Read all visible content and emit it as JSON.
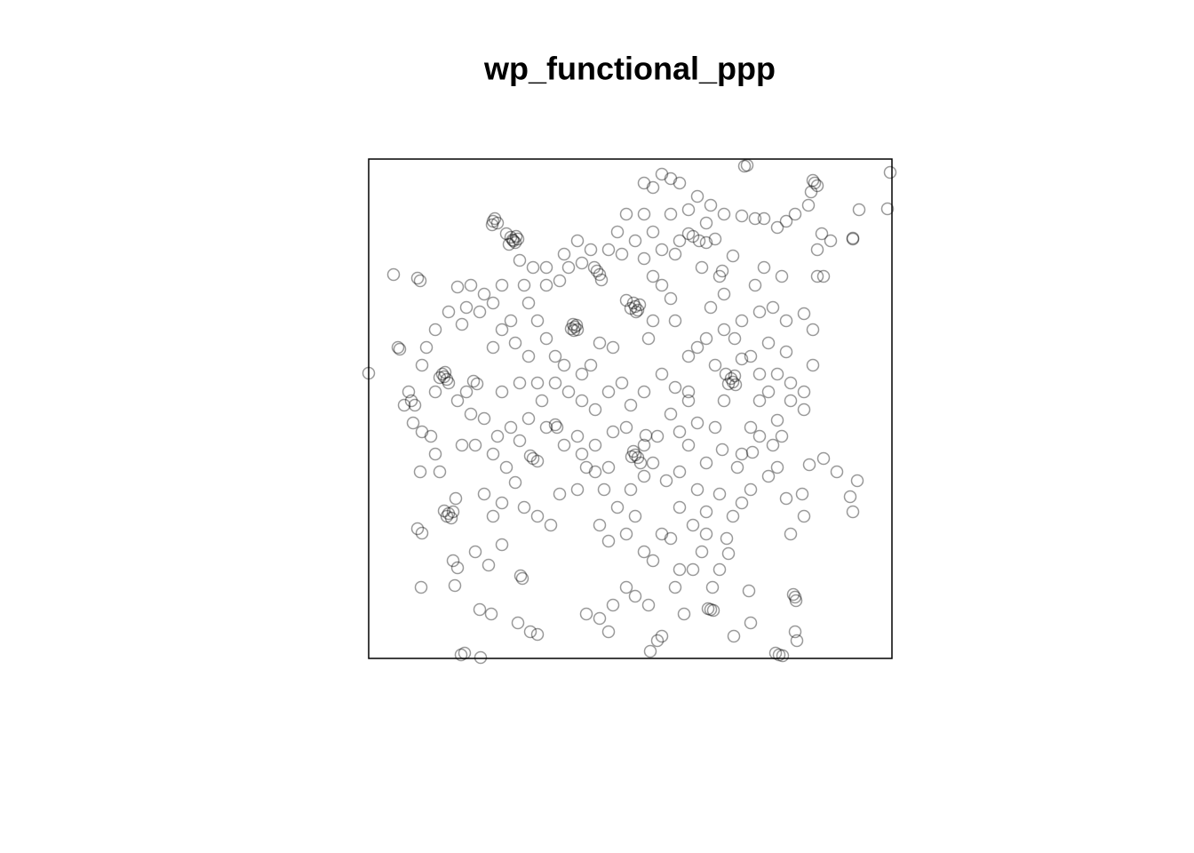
{
  "chart_data": {
    "type": "scatter",
    "title": "wp_functional_ppp",
    "color": "#000000",
    "alpha": 0.4,
    "xlim": [
      0,
      589
    ],
    "ylim": [
      0,
      562
    ],
    "x": [
      162,
      160,
      165,
      158,
      166,
      163,
      155,
      168,
      142,
      140,
      145,
      139,
      232,
      230,
      235,
      228,
      234,
      231,
      300,
      298,
      303,
      295,
      305,
      301,
      290,
      257,
      254,
      260,
      262,
      85,
      83,
      88,
      86,
      80,
      90,
      410,
      408,
      413,
      405,
      412,
      402,
      300,
      298,
      303,
      296,
      310,
      312,
      306,
      502,
      500,
      505,
      365,
      360,
      372,
      380,
      390,
      90,
      88,
      95,
      85,
      93,
      385,
      382,
      388,
      462,
      458,
      466,
      480,
      481,
      478,
      185,
      182,
      190,
      210,
      212,
      587,
      423,
      426,
      171,
      173,
      55,
      58,
      122,
      118,
      0,
      28,
      35,
      33,
      48,
      52,
      60,
      70,
      75,
      80,
      98,
      58,
      55,
      60,
      100,
      97,
      59,
      125,
      138,
      168,
      182,
      190,
      104,
      126,
      108,
      95,
      120,
      135,
      150,
      140,
      130,
      150,
      165,
      175,
      190,
      205,
      215,
      235,
      260,
      270,
      290,
      300,
      310,
      320,
      330,
      340,
      350,
      345,
      315,
      300,
      290,
      275,
      260,
      245,
      270,
      325,
      330,
      317,
      355,
      365,
      375,
      387,
      403,
      410,
      420,
      430,
      450,
      460,
      475,
      490,
      470,
      488,
      496,
      512,
      527,
      542,
      550,
      545,
      428,
      430,
      411,
      480,
      482,
      395,
      405,
      380,
      370,
      350,
      335,
      320,
      325,
      340,
      360,
      370,
      390,
      398,
      380,
      420,
      430,
      440,
      450,
      460,
      475,
      490,
      465,
      455,
      440,
      400,
      390,
      370,
      360,
      380,
      400,
      420,
      440,
      455,
      470,
      490,
      500,
      505,
      512,
      465,
      435,
      400,
      398,
      410,
      445,
      460,
      480,
      495,
      505,
      520,
      545,
      552,
      584,
      545,
      498,
      510,
      470,
      445,
      435,
      420,
      400,
      385,
      370,
      350,
      340,
      330,
      310,
      320,
      290,
      280,
      270,
      285,
      300,
      310,
      320,
      330,
      340,
      345,
      320,
      315,
      275,
      260,
      250,
      240,
      220,
      210,
      200,
      190,
      180,
      175,
      200,
      215,
      225,
      240,
      250,
      235,
      220,
      200,
      185,
      170,
      150,
      140,
      130,
      115,
      100,
      90,
      75,
      65,
      60,
      105,
      110,
      125,
      140,
      150,
      160,
      165,
      180,
      190,
      210,
      225,
      240,
      255,
      270,
      285,
      295,
      310,
      330,
      345,
      360,
      290,
      275,
      255,
      235,
      220,
      200,
      180,
      160,
      145,
      130,
      115,
      100,
      120,
      140,
      155,
      170,
      105,
      75,
      45,
      40,
      50,
      110,
      150,
      170,
      195,
      245,
      255,
      265,
      280,
      295,
      310,
      270,
      240,
      350,
      360,
      350,
      365,
      380,
      395,
      415,
      432,
      460,
      475,
      490,
      500,
      470,
      450,
      430,
      412,
      420,
      440,
      385,
      395,
      375,
      345,
      330,
      350,
      310,
      320,
      340,
      360,
      380
    ],
    "values": [
      471,
      474,
      468,
      466,
      475,
      470,
      478,
      472,
      495,
      492,
      490,
      488,
      373,
      376,
      370,
      371,
      375,
      369,
      396,
      400,
      392,
      394,
      398,
      390,
      403,
      436,
      440,
      432,
      426,
      317,
      320,
      314,
      322,
      316,
      310,
      311,
      315,
      308,
      309,
      318,
      320,
      229,
      233,
      226,
      227,
      240,
      251,
      220,
      535,
      538,
      532,
      475,
      478,
      470,
      468,
      472,
      163,
      160,
      165,
      166,
      158,
      55,
      56,
      54,
      4,
      6,
      3,
      69,
      65,
      72,
      225,
      228,
      222,
      263,
      260,
      547,
      554,
      555,
      93,
      90,
      428,
      425,
      309,
      312,
      321,
      432,
      348,
      350,
      290,
      285,
      255,
      250,
      230,
      210,
      180,
      210,
      146,
      141,
      102,
      82,
      80,
      55,
      50,
      40,
      30,
      27,
      4,
      1,
      6,
      110,
      120,
      105,
      128,
      160,
      185,
      175,
      198,
      170,
      160,
      150,
      185,
      190,
      150,
      132,
      140,
      160,
      120,
      110,
      140,
      135,
      100,
      80,
      60,
      70,
      80,
      60,
      45,
      50,
      30,
      20,
      25,
      8,
      50,
      100,
      120,
      80,
      135,
      160,
      175,
      190,
      205,
      215,
      140,
      160,
      180,
      185,
      218,
      225,
      210,
      182,
      200,
      165,
      76,
      40,
      25,
      30,
      20,
      100,
      118,
      165,
      190,
      210,
      200,
      220,
      250,
      275,
      290,
      265,
      260,
      235,
      220,
      230,
      260,
      290,
      300,
      320,
      310,
      280,
      250,
      240,
      250,
      290,
      330,
      350,
      340,
      360,
      370,
      380,
      390,
      395,
      380,
      388,
      370,
      430,
      430,
      430,
      420,
      410,
      436,
      453,
      440,
      485,
      500,
      510,
      460,
      470,
      473,
      505,
      506,
      472,
      525,
      478,
      492,
      495,
      495,
      498,
      500,
      510,
      520,
      535,
      540,
      545,
      535,
      530,
      500,
      480,
      460,
      455,
      470,
      450,
      430,
      420,
      405,
      380,
      380,
      360,
      350,
      355,
      330,
      320,
      330,
      340,
      360,
      380,
      400,
      420,
      420,
      425,
      440,
      445,
      460,
      470,
      455,
      440,
      440,
      448,
      420,
      400,
      410,
      420,
      418,
      390,
      370,
      350,
      330,
      376,
      395,
      390,
      350,
      370,
      380,
      355,
      340,
      310,
      310,
      300,
      290,
      280,
      300,
      310,
      285,
      300,
      320,
      305,
      300,
      260,
      255,
      240,
      250,
      240,
      260,
      270,
      260,
      250,
      270,
      275,
      290,
      240,
      230,
      215,
      245,
      240,
      300,
      300,
      285,
      265,
      300,
      300,
      310,
      290,
      215,
      210,
      190,
      170,
      190,
      205,
      215,
      230,
      255,
      240,
      170,
      150,
      140,
      185,
      215,
      232,
      268,
      290,
      300,
      330,
      345,
      355,
      340,
      360,
      337,
      320,
      395,
      430,
      440,
      455,
      460,
      470,
      500,
      480,
      500,
      505,
      490
    ]
  }
}
